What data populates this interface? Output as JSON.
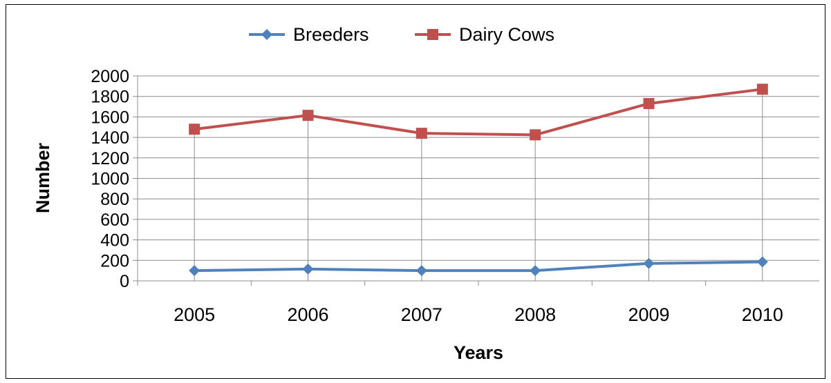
{
  "chart_data": {
    "type": "line",
    "title": "",
    "xlabel": "Years",
    "ylabel": "Number",
    "categories": [
      "2005",
      "2006",
      "2007",
      "2008",
      "2009",
      "2010"
    ],
    "ylim": [
      0,
      2000
    ],
    "yticks": [
      0,
      200,
      400,
      600,
      800,
      1000,
      1200,
      1400,
      1600,
      1800,
      2000
    ],
    "grid": "horizontal and vertical",
    "legend_position": "top",
    "series": [
      {
        "name": "Breeders",
        "color": "#4f81bd",
        "marker": "diamond",
        "values": [
          100,
          115,
          100,
          100,
          170,
          185
        ]
      },
      {
        "name": "Dairy Cows",
        "color": "#c0504d",
        "marker": "square",
        "values": [
          1480,
          1615,
          1440,
          1425,
          1730,
          1870
        ]
      }
    ]
  }
}
